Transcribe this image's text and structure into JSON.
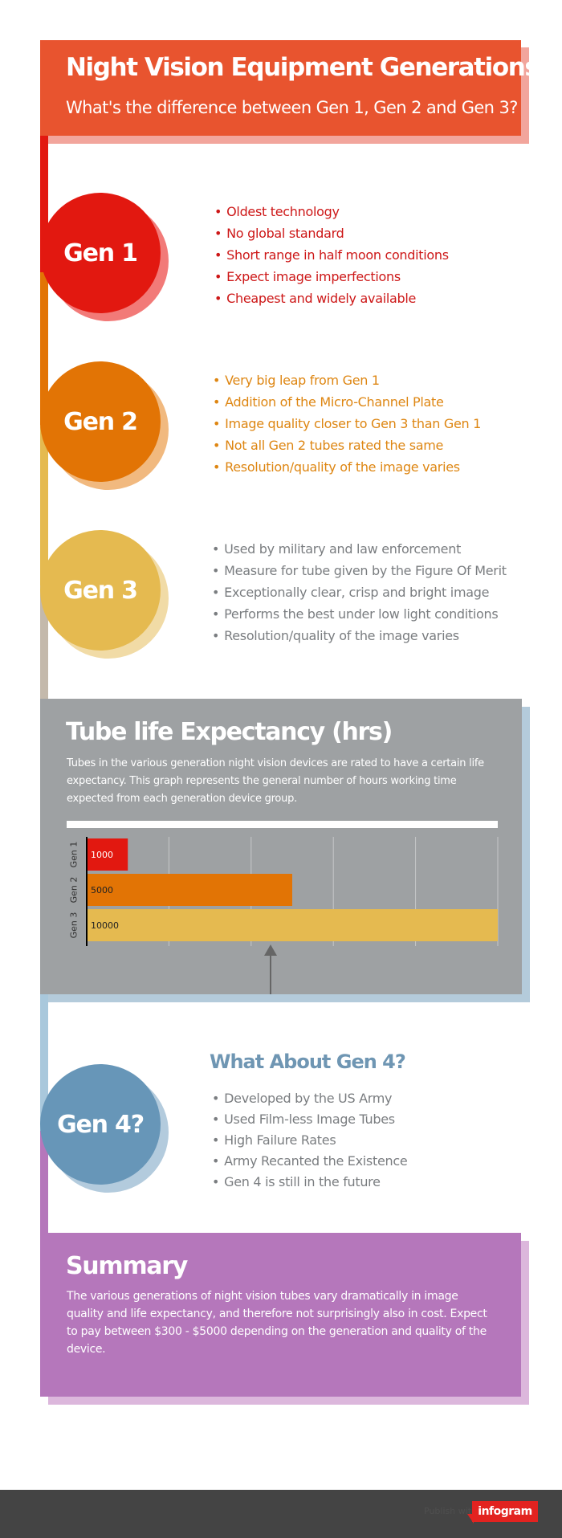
{
  "header": {
    "title": "Night Vision Equipment Generations",
    "subtitle": "What's the difference between Gen 1, Gen 2 and Gen 3?"
  },
  "colors": {
    "header": "#e8542f",
    "gen1": "#e21810",
    "gen2": "#e27405",
    "gen3": "#e5ba50",
    "gen4": "#6796b8",
    "summary": "#b577bb",
    "panel": "#9ea1a3"
  },
  "gens": [
    {
      "label": "Gen 1",
      "bullets": [
        "Oldest technology",
        "No global standard",
        "Short range in half moon conditions",
        "Expect image imperfections",
        "Cheapest and widely available"
      ]
    },
    {
      "label": "Gen 2",
      "bullets": [
        "Very big leap from Gen 1",
        "Addition of the Micro-Channel Plate",
        "Image quality closer to Gen 3 than Gen 1",
        "Not all Gen 2 tubes rated the same",
        "Resolution/quality of the image varies"
      ]
    },
    {
      "label": "Gen 3",
      "bullets": [
        "Used by military and law enforcement",
        "Measure for tube given by the Figure Of Merit",
        "Exceptionally clear, crisp and bright image",
        "Performs the best under low light conditions",
        "Resolution/quality of the image varies"
      ]
    }
  ],
  "tube_life": {
    "title": "Tube life Expectancy (hrs)",
    "description": "Tubes in the various generation night vision devices are rated to have a certain life expectancy.  This graph represents the general number of hours working time expected from each generation device group."
  },
  "chart_data": {
    "type": "bar",
    "orientation": "horizontal",
    "categories": [
      "Gen 1",
      "Gen 2",
      "Gen 3"
    ],
    "values": [
      1000,
      5000,
      10000
    ],
    "data_labels": [
      "1000",
      "5000",
      "10000"
    ],
    "colors": [
      "#e21810",
      "#e27405",
      "#e5ba50"
    ],
    "xlim": [
      0,
      10000
    ],
    "grid": true,
    "title": "",
    "xlabel": "",
    "ylabel": ""
  },
  "gen4": {
    "label": "Gen 4?",
    "title": "What About Gen 4?",
    "bullets": [
      "Developed by the US Army",
      "Used Film-less Image Tubes",
      "High Failure Rates",
      "Army Recanted the Existence",
      "Gen 4 is still in the future"
    ]
  },
  "summary": {
    "title": "Summary",
    "text": "The various generations of night vision tubes vary dramatically in image quality and life expectancy, and therefore not surprisingly also in cost.   Expect to pay between $300 - $5000 depending on the generation and quality of the device."
  },
  "footer": {
    "muted_text": "Publish with",
    "logo_text": "infogram"
  }
}
